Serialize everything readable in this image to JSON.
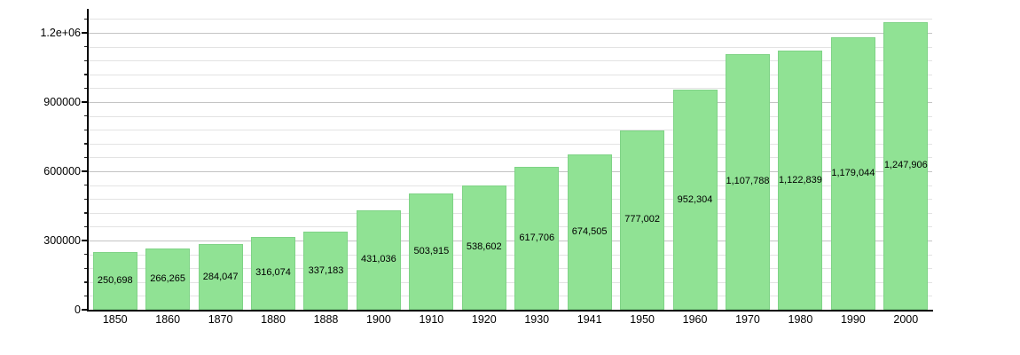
{
  "chart_data": {
    "type": "bar",
    "title": "",
    "xlabel": "",
    "ylabel": "",
    "categories": [
      "1850",
      "1860",
      "1870",
      "1880",
      "1888",
      "1900",
      "1910",
      "1920",
      "1930",
      "1941",
      "1950",
      "1960",
      "1970",
      "1980",
      "1990",
      "2000"
    ],
    "values": [
      250698,
      266265,
      284047,
      316074,
      337183,
      431036,
      503915,
      538602,
      617706,
      674505,
      777002,
      952304,
      1107788,
      1122839,
      1179044,
      1247906
    ],
    "value_labels": [
      "250,698",
      "266,265",
      "284,047",
      "316,074",
      "337,183",
      "431,036",
      "503,915",
      "538,602",
      "617,706",
      "674,505",
      "777,002",
      "952,304",
      "1,107,788",
      "1,122,839",
      "1,179,044",
      "1,247,906"
    ],
    "y_major_ticks": [
      {
        "value": 0,
        "label": "0"
      },
      {
        "value": 300000,
        "label": "300000"
      },
      {
        "value": 600000,
        "label": "600000"
      },
      {
        "value": 900000,
        "label": "900000"
      },
      {
        "value": 1200000,
        "label": "1.2e+06"
      }
    ],
    "y_minor_step": 60000,
    "y_minor_max": 1260000,
    "ylim": [
      0,
      1303846
    ],
    "grid": "on",
    "legend": "none",
    "value_label_position": "inside-middle",
    "colors": {
      "bar_fill": "#90e294",
      "bar_border": "#7fd386",
      "grid_major": "#c4c4c4",
      "grid_minor": "#e3e3e3",
      "axis": "#000000",
      "text": "#000000",
      "background": "#ffffff"
    }
  }
}
